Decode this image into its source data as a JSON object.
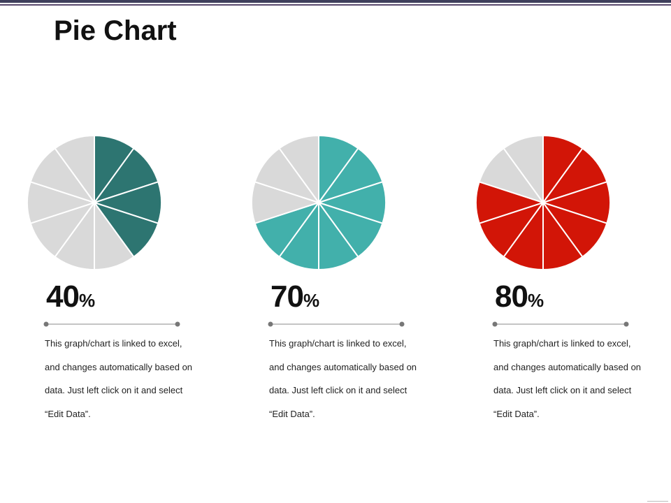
{
  "title": "Pie Chart",
  "colors": {
    "background": "#ffffff",
    "slice_empty": "#d9d9d9",
    "slice_gap": "#ffffff"
  },
  "chart_data": [
    {
      "type": "pie",
      "segments": 10,
      "filled_segments": 4,
      "value": 40,
      "value_label": "40",
      "unit": "%",
      "fill_color": "#2d7571",
      "remainder_color": "#d9d9d9",
      "description": [
        "This graph/chart is linked to excel,",
        "and changes automatically based on",
        "data. Just left click on it and select",
        "“Edit Data”."
      ]
    },
    {
      "type": "pie",
      "segments": 10,
      "filled_segments": 7,
      "value": 70,
      "value_label": "70",
      "unit": "%",
      "fill_color": "#42b0ab",
      "remainder_color": "#d9d9d9",
      "description": [
        "This graph/chart is linked to excel,",
        "and changes automatically based on",
        "data. Just left click on it and select",
        "“Edit Data”."
      ]
    },
    {
      "type": "pie",
      "segments": 10,
      "filled_segments": 8,
      "value": 80,
      "value_label": "80",
      "unit": "%",
      "fill_color": "#d21507",
      "remainder_color": "#d9d9d9",
      "description": [
        "This graph/chart is linked to excel,",
        "and changes automatically based on",
        "data. Just left click on it and select",
        "“Edit Data”."
      ]
    }
  ]
}
